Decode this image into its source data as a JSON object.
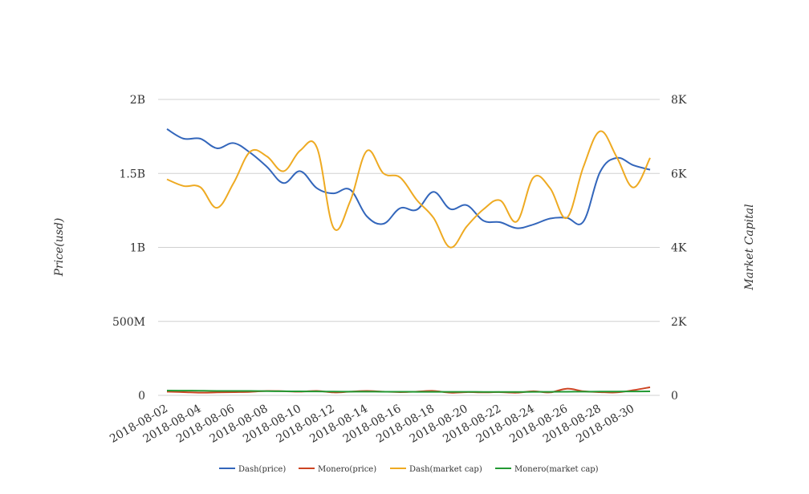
{
  "chart_data": {
    "type": "line",
    "title": "",
    "ylabel": "Price(usd)",
    "y2label": "Market Capital",
    "ylim": [
      0,
      2000000000
    ],
    "y2lim": [
      0,
      8000
    ],
    "left_ticks": [
      {
        "value": 0,
        "label": "0"
      },
      {
        "value": 500000000,
        "label": "500M"
      },
      {
        "value": 1000000000,
        "label": "1B"
      },
      {
        "value": 1500000000,
        "label": "1.5B"
      },
      {
        "value": 2000000000,
        "label": "2B"
      }
    ],
    "right_ticks": [
      {
        "value": 0,
        "label": "0"
      },
      {
        "value": 2000,
        "label": "2K"
      },
      {
        "value": 4000,
        "label": "4K"
      },
      {
        "value": 6000,
        "label": "6K"
      },
      {
        "value": 8000,
        "label": "8K"
      }
    ],
    "x": [
      "2018-08-02",
      "2018-08-03",
      "2018-08-04",
      "2018-08-05",
      "2018-08-06",
      "2018-08-07",
      "2018-08-08",
      "2018-08-09",
      "2018-08-10",
      "2018-08-11",
      "2018-08-12",
      "2018-08-13",
      "2018-08-14",
      "2018-08-15",
      "2018-08-16",
      "2018-08-17",
      "2018-08-18",
      "2018-08-19",
      "2018-08-20",
      "2018-08-21",
      "2018-08-22",
      "2018-08-23",
      "2018-08-24",
      "2018-08-25",
      "2018-08-26",
      "2018-08-27",
      "2018-08-28",
      "2018-08-29",
      "2018-08-30",
      "2018-08-31"
    ],
    "x_tick_labels": [
      "2018-08-02",
      "2018-08-04",
      "2018-08-06",
      "2018-08-08",
      "2018-08-10",
      "2018-08-12",
      "2018-08-14",
      "2018-08-16",
      "2018-08-18",
      "2018-08-20",
      "2018-08-22",
      "2018-08-24",
      "2018-08-26",
      "2018-08-28",
      "2018-08-30"
    ],
    "legend_position": "bottom",
    "grid": true,
    "series": [
      {
        "name": "Dash(price)",
        "axis": "left",
        "color": "#3366bb",
        "values": [
          1800000000,
          1735000000,
          1735000000,
          1670000000,
          1705000000,
          1640000000,
          1545000000,
          1435000000,
          1515000000,
          1400000000,
          1365000000,
          1390000000,
          1210000000,
          1160000000,
          1265000000,
          1255000000,
          1375000000,
          1260000000,
          1285000000,
          1180000000,
          1170000000,
          1130000000,
          1155000000,
          1195000000,
          1200000000,
          1175000000,
          1510000000,
          1605000000,
          1555000000,
          1525000000
        ]
      },
      {
        "name": "Monero(price)",
        "axis": "left",
        "color": "#cc4422",
        "values": [
          25000000,
          22000000,
          18000000,
          20000000,
          22000000,
          24000000,
          30000000,
          28000000,
          25000000,
          30000000,
          20000000,
          25000000,
          30000000,
          25000000,
          22000000,
          25000000,
          30000000,
          18000000,
          22000000,
          20000000,
          22000000,
          18000000,
          28000000,
          20000000,
          45000000,
          28000000,
          22000000,
          20000000,
          35000000,
          55000000
        ]
      },
      {
        "name": "Dash(market cap)",
        "axis": "right",
        "color": "#eeaa22",
        "values": [
          5840,
          5660,
          5630,
          5070,
          5740,
          6590,
          6460,
          6060,
          6620,
          6700,
          4530,
          5250,
          6610,
          6000,
          5890,
          5280,
          4800,
          4000,
          4570,
          5030,
          5270,
          4700,
          5890,
          5600,
          4800,
          6180,
          7140,
          6440,
          5620,
          6420
        ]
      },
      {
        "name": "Monero(market cap)",
        "axis": "right",
        "color": "#229933",
        "values": [
          130,
          128,
          125,
          120,
          118,
          118,
          115,
          110,
          108,
          105,
          102,
          100,
          100,
          98,
          98,
          96,
          95,
          95,
          94,
          93,
          92,
          92,
          95,
          96,
          98,
          100,
          102,
          104,
          106,
          108
        ]
      }
    ]
  }
}
